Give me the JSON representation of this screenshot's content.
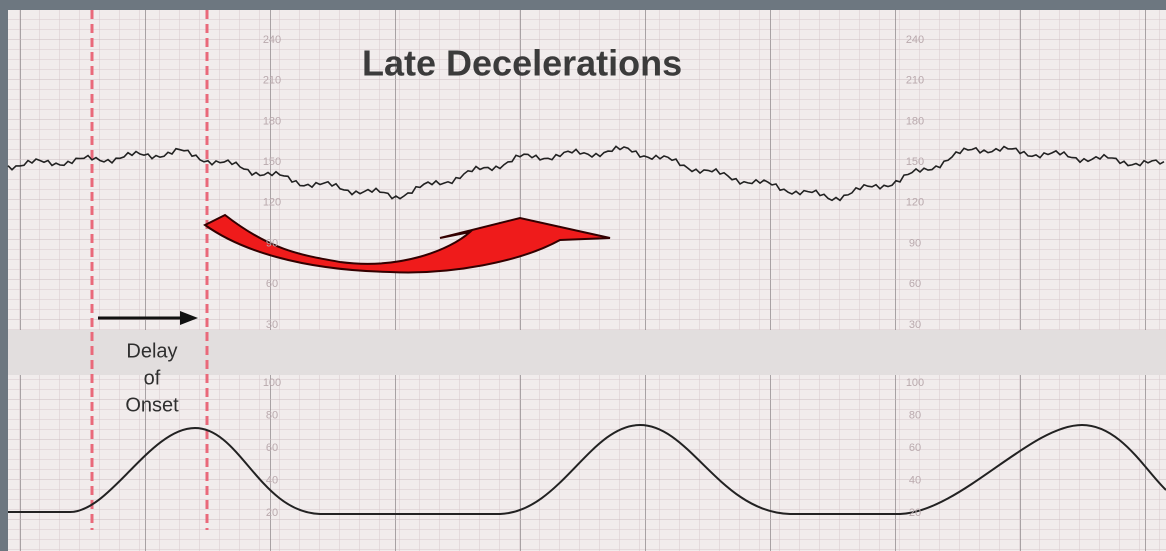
{
  "title": "Late Decelerations",
  "annotation": {
    "lines": [
      "Delay",
      "of",
      "Onset"
    ]
  },
  "fhr_scale": {
    "labels": [
      "240",
      "210",
      "180",
      "150",
      "120",
      "90",
      "60",
      "30"
    ]
  },
  "toco_scale": {
    "labels": [
      "100",
      "80",
      "60",
      "40",
      "20"
    ]
  }
}
